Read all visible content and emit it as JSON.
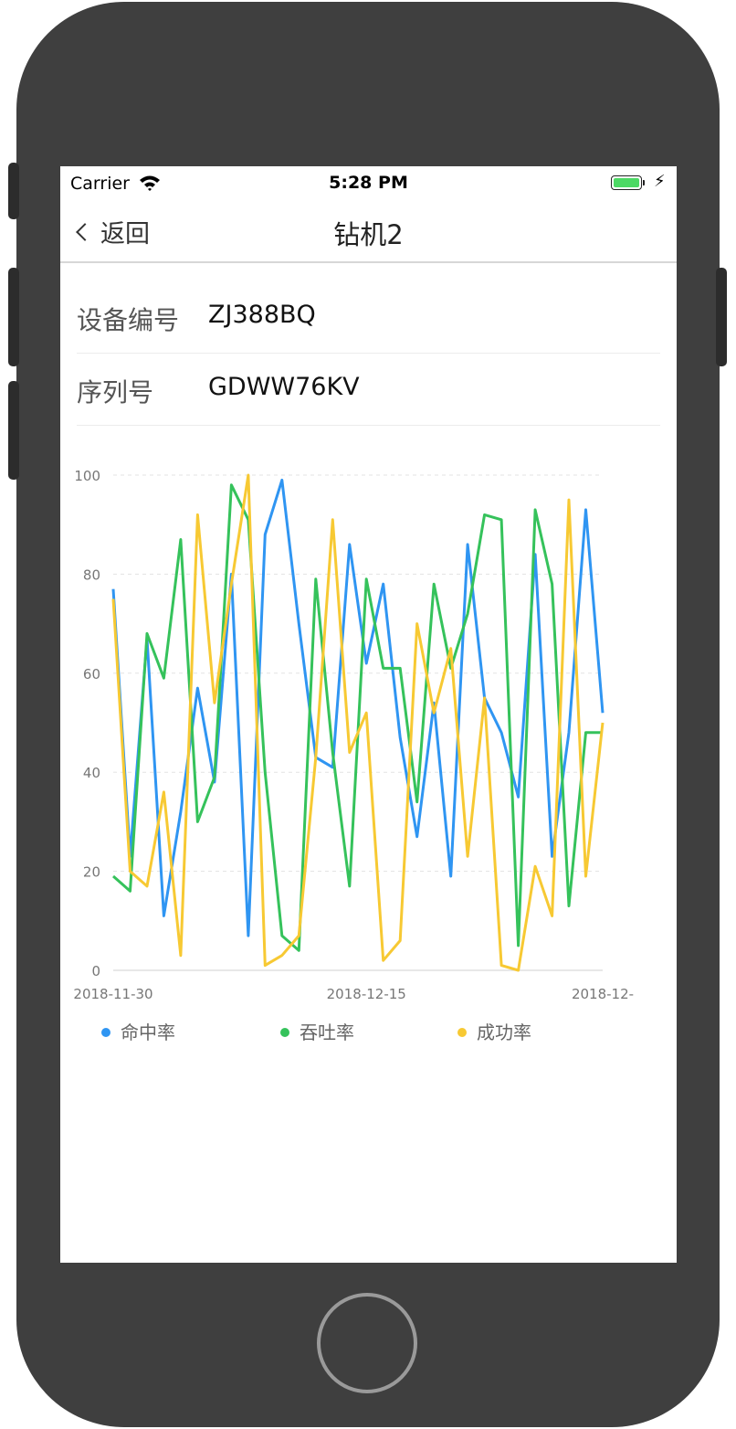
{
  "status_bar": {
    "carrier": "Carrier",
    "time": "5:28 PM",
    "bolt": "⚡"
  },
  "nav": {
    "back_label": "返回",
    "title": "钻机2"
  },
  "info": [
    {
      "label": "设备编号",
      "value": "ZJ388BQ"
    },
    {
      "label": "序列号",
      "value": "GDWW76KV"
    }
  ],
  "colors": {
    "series1": "#2f95f2",
    "series2": "#35c25b",
    "series3": "#f7c933"
  },
  "chart_data": {
    "type": "line",
    "y_ticks": [
      "0",
      "20",
      "40",
      "60",
      "80",
      "100"
    ],
    "x_tick_labels": [
      "2018-11-30",
      "2018-12-15",
      "2018-12-"
    ],
    "ylim": [
      0,
      100
    ],
    "grid": "dashed horizontal",
    "legend_position": "bottom",
    "series": [
      {
        "name": "命中率",
        "color": "#2f95f2",
        "values": [
          77,
          23,
          67,
          11,
          32,
          57,
          38,
          80,
          7,
          88,
          99,
          70,
          43,
          41,
          86,
          62,
          78,
          47,
          27,
          54,
          19,
          86,
          55,
          48,
          35,
          84,
          23,
          48,
          93,
          52
        ]
      },
      {
        "name": "吞吐率",
        "color": "#35c25b",
        "values": [
          19,
          16,
          68,
          59,
          87,
          30,
          39,
          98,
          91,
          40,
          7,
          4,
          79,
          44,
          17,
          79,
          61,
          61,
          34,
          78,
          61,
          72,
          92,
          91,
          5,
          93,
          78,
          13,
          48,
          48
        ]
      },
      {
        "name": "成功率",
        "color": "#f7c933",
        "values": [
          75,
          20,
          17,
          36,
          3,
          92,
          54,
          78,
          100,
          1,
          3,
          7,
          43,
          91,
          44,
          52,
          2,
          6,
          70,
          52,
          65,
          23,
          55,
          1,
          0,
          21,
          11,
          95,
          19,
          50
        ]
      }
    ]
  }
}
